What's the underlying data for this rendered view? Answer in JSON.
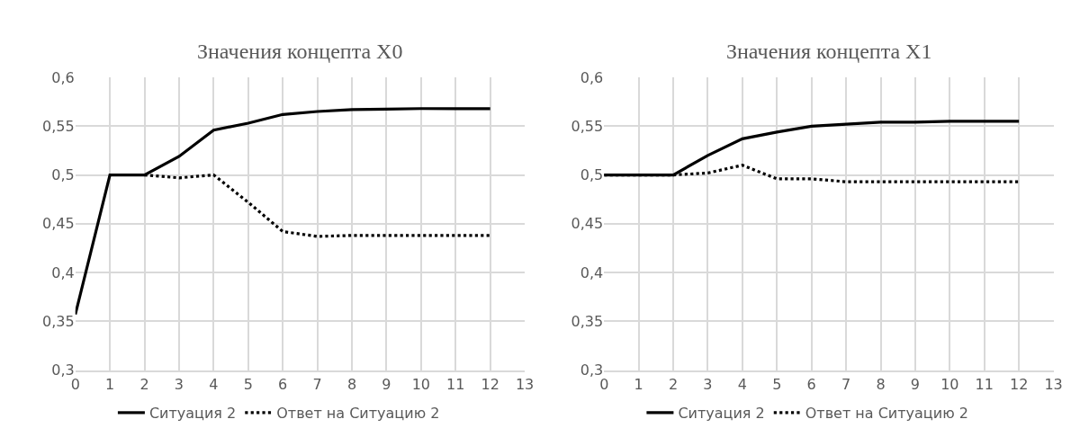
{
  "chart_data": [
    {
      "type": "line",
      "title": "Значения концепта X0",
      "x": [
        0,
        1,
        2,
        3,
        4,
        5,
        6,
        7,
        8,
        9,
        10,
        11,
        12
      ],
      "series": [
        {
          "name": "Ситуация 2",
          "color": "#000000",
          "line_style": "solid",
          "values": [
            0.357,
            0.5,
            0.5,
            0.519,
            0.546,
            0.553,
            0.562,
            0.565,
            0.567,
            0.5675,
            0.568,
            0.568,
            0.568
          ]
        },
        {
          "name": "Ответ на Ситуацию 2",
          "color": "#000000",
          "line_style": "dotted",
          "values": [
            null,
            null,
            0.5,
            0.497,
            0.5,
            0.472,
            0.442,
            0.437,
            0.438,
            0.438,
            0.438,
            0.438,
            0.438
          ]
        }
      ],
      "xlim": [
        0,
        13
      ],
      "xticks": [
        0,
        1,
        2,
        3,
        4,
        5,
        6,
        7,
        8,
        9,
        10,
        11,
        12,
        13
      ],
      "ylim": [
        0.3,
        0.6
      ],
      "yticks": [
        {
          "value": 0.3,
          "label": "0,3"
        },
        {
          "value": 0.35,
          "label": "0,35"
        },
        {
          "value": 0.4,
          "label": "0,4"
        },
        {
          "value": 0.45,
          "label": "0,45"
        },
        {
          "value": 0.5,
          "label": "0,5"
        },
        {
          "value": 0.55,
          "label": "0,55"
        },
        {
          "value": 0.6,
          "label": "0,6"
        }
      ],
      "grid": true,
      "legend": "bottom",
      "marker": "none"
    },
    {
      "type": "line",
      "title": "Значения концепта X1",
      "x": [
        0,
        1,
        2,
        3,
        4,
        5,
        6,
        7,
        8,
        9,
        10,
        11,
        12
      ],
      "series": [
        {
          "name": "Ситуация 2",
          "color": "#000000",
          "line_style": "solid",
          "values": [
            0.5,
            0.5,
            0.5,
            0.52,
            0.537,
            0.544,
            0.55,
            0.552,
            0.554,
            0.554,
            0.555,
            0.555,
            0.555
          ]
        },
        {
          "name": "Ответ на Ситуацию 2",
          "color": "#000000",
          "line_style": "dotted",
          "values": [
            0.5,
            0.5,
            0.5,
            0.502,
            0.51,
            0.496,
            0.496,
            0.493,
            0.493,
            0.493,
            0.493,
            0.493,
            0.493
          ]
        }
      ],
      "xlim": [
        0,
        13
      ],
      "xticks": [
        0,
        1,
        2,
        3,
        4,
        5,
        6,
        7,
        8,
        9,
        10,
        11,
        12,
        13
      ],
      "ylim": [
        0.3,
        0.6
      ],
      "yticks": [
        {
          "value": 0.3,
          "label": "0,3"
        },
        {
          "value": 0.35,
          "label": "0,35"
        },
        {
          "value": 0.4,
          "label": "0,4"
        },
        {
          "value": 0.45,
          "label": "0,45"
        },
        {
          "value": 0.5,
          "label": "0,5"
        },
        {
          "value": 0.55,
          "label": "0,55"
        },
        {
          "value": 0.6,
          "label": "0,6"
        }
      ],
      "grid": true,
      "legend": "bottom",
      "marker": "none"
    }
  ]
}
